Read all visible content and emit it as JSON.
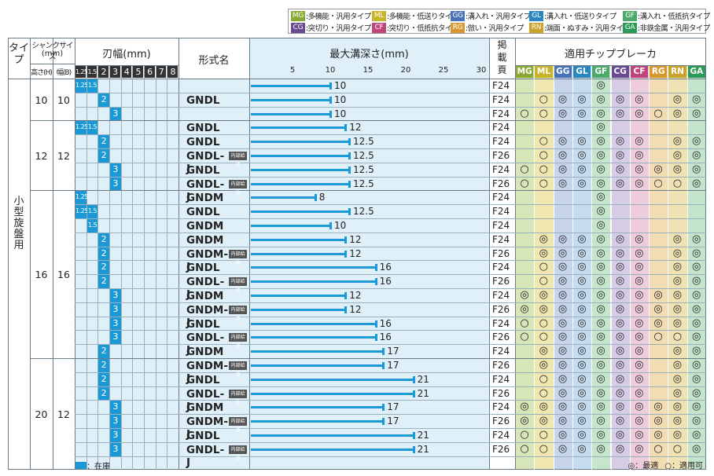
{
  "legend": {
    "items": [
      {
        "code": "MG",
        "label": "多機能・汎用タイプ",
        "color": "#8aa834"
      },
      {
        "code": "ML",
        "label": "多機能・低送りタイプ",
        "color": "#c8b428"
      },
      {
        "code": "GG",
        "label": "溝入れ・汎用タイプ",
        "color": "#4a72b8"
      },
      {
        "code": "GL",
        "label": "溝入れ・低送りタイプ",
        "color": "#2a86c0"
      },
      {
        "code": "GF",
        "label": "溝入れ・低抵抗タイプ",
        "color": "#4caa6a"
      },
      {
        "code": "CG",
        "label": "突切り・汎用タイプ",
        "color": "#6a4a90"
      },
      {
        "code": "CF",
        "label": "突切り・低抵抗タイプ",
        "color": "#c0457a"
      },
      {
        "code": "RG",
        "label": "倣い・汎用タイプ",
        "color": "#d89830"
      },
      {
        "code": "RN",
        "label": "端面・ぬすみ・汎用タイプ",
        "color": "#c9a32a"
      },
      {
        "code": "GA",
        "label": "非鉄金属・汎用タイプ",
        "color": "#2a9a58"
      }
    ]
  },
  "headers": {
    "type": "タイプ",
    "shank": "シャンクサイズ",
    "shank_unit": "(mm)",
    "height": "高さ(H)",
    "width": "幅(B)",
    "blade": "刃幅(mm)",
    "blade_cols": [
      "1.25",
      "1.5",
      "2",
      "3",
      "4",
      "5",
      "6",
      "7",
      "8"
    ],
    "form": "形式名",
    "depth": "最大溝深さ(mm)",
    "depth_ticks": [
      "5",
      "10",
      "15",
      "20",
      "25",
      "30"
    ],
    "page": "掲載頁",
    "breaker": "適用チップブレーカ",
    "breaker_cols": [
      "MG",
      "ML",
      "GG",
      "GL",
      "GF",
      "CG",
      "CF",
      "RG",
      "RN",
      "GA"
    ]
  },
  "type_label": "小型旋盤用",
  "internal_tag": "内部給油",
  "groups": [
    {
      "h": "10",
      "b": "10",
      "rows": [
        0,
        3
      ]
    },
    {
      "h": "12",
      "b": "12",
      "rows": [
        3,
        8
      ]
    },
    {
      "h": "16",
      "b": "16",
      "rows": [
        8,
        20
      ]
    },
    {
      "h": "20",
      "b": "12",
      "rows": [
        20,
        28
      ]
    }
  ],
  "rows": [
    {
      "blades": [
        "1.25",
        "1.5"
      ],
      "form": "",
      "tag": false,
      "depth": "10",
      "page": "F24",
      "b": [
        "",
        "",
        "",
        "",
        "◎",
        "",
        "",
        "",
        "",
        ""
      ]
    },
    {
      "blades": [
        "2"
      ],
      "form": "GNDL",
      "tag": false,
      "depth": "10",
      "page": "F24",
      "b": [
        "",
        "○",
        "◎",
        "◎",
        "◎",
        "◎",
        "◎",
        "",
        "◎",
        "◎"
      ]
    },
    {
      "blades": [
        "3"
      ],
      "form": "",
      "tag": false,
      "depth": "10",
      "page": "F24",
      "b": [
        "○",
        "○",
        "◎",
        "◎",
        "◎",
        "◎",
        "◎",
        "○",
        "◎",
        "◎"
      ]
    },
    {
      "blades": [
        "1.25",
        "1.5"
      ],
      "form": "GNDL",
      "tag": false,
      "depth": "12",
      "page": "F24",
      "b": [
        "",
        "",
        "",
        "",
        "◎",
        "",
        "",
        "",
        "",
        ""
      ]
    },
    {
      "blades": [
        "2"
      ],
      "form": "GNDL",
      "tag": false,
      "depth": "12.5",
      "page": "F24",
      "b": [
        "",
        "○",
        "◎",
        "◎",
        "◎",
        "◎",
        "◎",
        "",
        "◎",
        "◎"
      ]
    },
    {
      "blades": [
        "2"
      ],
      "form": "GNDL-J",
      "tag": true,
      "depth": "12.5",
      "page": "F26",
      "b": [
        "",
        "○",
        "◎",
        "◎",
        "◎",
        "◎",
        "◎",
        "",
        "◎",
        "◎"
      ]
    },
    {
      "blades": [
        "3"
      ],
      "form": "GNDL",
      "tag": false,
      "depth": "12.5",
      "page": "F24",
      "b": [
        "○",
        "○",
        "◎",
        "◎",
        "◎",
        "◎",
        "◎",
        "◎",
        "◎",
        "◎"
      ]
    },
    {
      "blades": [
        "3"
      ],
      "form": "GNDL-J",
      "tag": true,
      "depth": "12.5",
      "page": "F26",
      "b": [
        "○",
        "○",
        "◎",
        "◎",
        "◎",
        "◎",
        "◎",
        "○",
        "○",
        "◎"
      ]
    },
    {
      "blades": [
        "1.25"
      ],
      "form": "GNDM",
      "tag": false,
      "depth": "8",
      "page": "F24",
      "b": [
        "",
        "",
        "",
        "",
        "◎",
        "",
        "",
        "",
        "",
        ""
      ]
    },
    {
      "blades": [
        "1.25",
        "1.5"
      ],
      "form": "GNDL",
      "tag": false,
      "depth": "12.5",
      "page": "F24",
      "b": [
        "",
        "",
        "",
        "",
        "◎",
        "",
        "",
        "",
        "",
        ""
      ]
    },
    {
      "blades": [
        "1.5"
      ],
      "form": "GNDM",
      "tag": false,
      "depth": "10",
      "page": "F24",
      "b": [
        "",
        "",
        "",
        "",
        "◎",
        "",
        "",
        "",
        "",
        ""
      ]
    },
    {
      "blades": [
        "2"
      ],
      "form": "GNDM",
      "tag": false,
      "depth": "12",
      "page": "F24",
      "b": [
        "",
        "◎",
        "◎",
        "◎",
        "◎",
        "◎",
        "◎",
        "",
        "◎",
        "◎"
      ]
    },
    {
      "blades": [
        "2"
      ],
      "form": "GNDM-J",
      "tag": true,
      "depth": "12",
      "page": "F26",
      "b": [
        "",
        "◎",
        "◎",
        "◎",
        "◎",
        "◎",
        "◎",
        "",
        "◎",
        "◎"
      ]
    },
    {
      "blades": [
        "2"
      ],
      "form": "GNDL",
      "tag": false,
      "depth": "16",
      "page": "F24",
      "b": [
        "",
        "○",
        "◎",
        "◎",
        "◎",
        "◎",
        "◎",
        "",
        "◎",
        "◎"
      ]
    },
    {
      "blades": [
        "2"
      ],
      "form": "GNDL-J",
      "tag": true,
      "depth": "16",
      "page": "F26",
      "b": [
        "",
        "○",
        "◎",
        "◎",
        "◎",
        "◎",
        "◎",
        "",
        "◎",
        "◎"
      ]
    },
    {
      "blades": [
        "3"
      ],
      "form": "GNDM",
      "tag": false,
      "depth": "12",
      "page": "F24",
      "b": [
        "◎",
        "◎",
        "◎",
        "◎",
        "◎",
        "◎",
        "◎",
        "◎",
        "◎",
        "◎"
      ]
    },
    {
      "blades": [
        "3"
      ],
      "form": "GNDM-J",
      "tag": true,
      "depth": "12",
      "page": "F26",
      "b": [
        "◎",
        "◎",
        "◎",
        "◎",
        "◎",
        "◎",
        "◎",
        "◎",
        "◎",
        "◎"
      ]
    },
    {
      "blades": [
        "3"
      ],
      "form": "GNDL",
      "tag": false,
      "depth": "16",
      "page": "F24",
      "b": [
        "○",
        "○",
        "◎",
        "◎",
        "◎",
        "◎",
        "◎",
        "◎",
        "◎",
        "◎"
      ]
    },
    {
      "blades": [
        "3"
      ],
      "form": "GNDL-J",
      "tag": true,
      "depth": "16",
      "page": "F26",
      "b": [
        "○",
        "○",
        "◎",
        "◎",
        "◎",
        "◎",
        "◎",
        "○",
        "○",
        "◎"
      ]
    },
    {
      "blades": [
        "2"
      ],
      "form": "GNDM",
      "tag": false,
      "depth": "17",
      "page": "F24",
      "b": [
        "",
        "◎",
        "◎",
        "◎",
        "◎",
        "◎",
        "◎",
        "",
        "◎",
        "◎"
      ]
    },
    {
      "blades": [
        "2"
      ],
      "form": "GNDM-J",
      "tag": true,
      "depth": "17",
      "page": "F26",
      "b": [
        "",
        "◎",
        "◎",
        "◎",
        "◎",
        "◎",
        "◎",
        "",
        "◎",
        "◎"
      ]
    },
    {
      "blades": [
        "2"
      ],
      "form": "GNDL",
      "tag": false,
      "depth": "21",
      "page": "F24",
      "b": [
        "",
        "○",
        "◎",
        "◎",
        "◎",
        "◎",
        "◎",
        "",
        "◎",
        "◎"
      ]
    },
    {
      "blades": [
        "2"
      ],
      "form": "GNDL-J",
      "tag": true,
      "depth": "21",
      "page": "F26",
      "b": [
        "",
        "○",
        "◎",
        "◎",
        "◎",
        "◎",
        "◎",
        "",
        "◎",
        "◎"
      ]
    },
    {
      "blades": [
        "3"
      ],
      "form": "GNDM",
      "tag": false,
      "depth": "17",
      "page": "F24",
      "b": [
        "◎",
        "◎",
        "◎",
        "◎",
        "◎",
        "◎",
        "◎",
        "◎",
        "◎",
        "◎"
      ]
    },
    {
      "blades": [
        "3"
      ],
      "form": "GNDM-J",
      "tag": true,
      "depth": "17",
      "page": "F26",
      "b": [
        "◎",
        "◎",
        "◎",
        "◎",
        "◎",
        "◎",
        "◎",
        "◎",
        "◎",
        "◎"
      ]
    },
    {
      "blades": [
        "3"
      ],
      "form": "GNDL",
      "tag": false,
      "depth": "21",
      "page": "F24",
      "b": [
        "○",
        "○",
        "◎",
        "◎",
        "◎",
        "◎",
        "◎",
        "◎",
        "◎",
        "◎"
      ]
    },
    {
      "blades": [
        "3"
      ],
      "form": "GNDL-J",
      "tag": true,
      "depth": "21",
      "page": "F26",
      "b": [
        "○",
        "○",
        "◎",
        "◎",
        "◎",
        "◎",
        "◎",
        "○",
        "○",
        "◎"
      ]
    },
    {
      "blades": [
        "3"
      ],
      "form": "",
      "tag": false,
      "depth": "",
      "page": "",
      "b": [
        "",
        "",
        "",
        "",
        "",
        "",
        "",
        "",
        "",
        ""
      ]
    }
  ],
  "footer": {
    "stock": "：在庫",
    "best": "◎：最適",
    "ok": "○：適用可"
  }
}
